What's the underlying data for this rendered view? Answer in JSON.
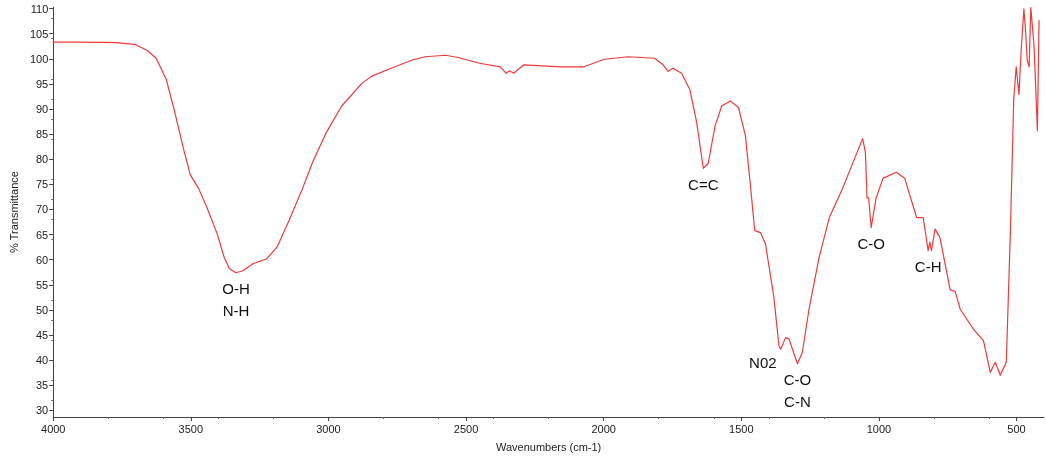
{
  "chart_data": {
    "type": "line",
    "xlabel": "Wavenumbers (cm-1)",
    "ylabel": "% Transmittance",
    "xlim": [
      4000,
      400
    ],
    "ylim": [
      28.7,
      110.3
    ],
    "xticks": [
      4000,
      3500,
      3000,
      2500,
      2000,
      1500,
      1000,
      500
    ],
    "yticks": [
      30,
      35,
      40,
      45,
      50,
      55,
      60,
      65,
      70,
      75,
      80,
      85,
      90,
      95,
      100,
      105,
      110
    ],
    "marker": "none",
    "line_style": "solid",
    "x": [
      4000,
      3911,
      3769,
      3700,
      3657,
      3626,
      3589,
      3558,
      3527,
      3502,
      3472,
      3441,
      3404,
      3379,
      3360,
      3336,
      3311,
      3274,
      3224,
      3187,
      3144,
      3094,
      3057,
      3007,
      2952,
      2877,
      2840,
      2772,
      2698,
      2649,
      2574,
      2525,
      2451,
      2376,
      2354,
      2342,
      2327,
      2290,
      2156,
      2071,
      1998,
      1912,
      1815,
      1784,
      1766,
      1748,
      1717,
      1687,
      1662,
      1638,
      1620,
      1595,
      1571,
      1540,
      1510,
      1485,
      1467,
      1451,
      1430,
      1412,
      1382,
      1363,
      1357,
      1339,
      1327,
      1296,
      1278,
      1254,
      1217,
      1180,
      1132,
      1059,
      1049,
      1043,
      1037,
      1028,
      1010,
      985,
      937,
      906,
      863,
      839,
      821,
      815,
      809,
      796,
      778,
      741,
      723,
      704,
      655,
      620,
      595,
      577,
      559,
      537,
      522,
      510,
      501,
      491,
      483,
      473,
      467,
      461,
      454,
      448,
      436,
      424,
      418
    ],
    "series": [
      {
        "color": "#f03a3a",
        "values": [
          103.3,
          103.3,
          103.2,
          102.8,
          101.6,
          100.1,
          95.8,
          89.3,
          82.1,
          76.9,
          74.2,
          70.3,
          65.1,
          60.5,
          58.2,
          57.4,
          57.8,
          59.2,
          60.2,
          62.5,
          67.7,
          74.2,
          79.5,
          85.4,
          90.6,
          95.2,
          96.6,
          98.1,
          99.7,
          100.4,
          100.7,
          100.2,
          99.1,
          98.4,
          97.1,
          97.6,
          97.1,
          98.8,
          98.4,
          98.4,
          99.9,
          100.4,
          100.1,
          98.8,
          97.5,
          98.1,
          97.1,
          93.9,
          87.3,
          78.2,
          79.2,
          86.7,
          90.6,
          91.6,
          90.3,
          84.7,
          74.9,
          65.8,
          65.4,
          63.1,
          52.7,
          42.9,
          42.2,
          44.5,
          44.3,
          39.3,
          41.6,
          50.1,
          60.5,
          68.4,
          74.2,
          84.1,
          81.4,
          72.3,
          72.3,
          66.4,
          72.3,
          76.2,
          77.4,
          76.2,
          68.4,
          68.4,
          61.8,
          63.5,
          61.8,
          66.1,
          64.4,
          54.0,
          53.7,
          50.1,
          46.1,
          43.9,
          37.6,
          39.6,
          37.0,
          39.6,
          65.8,
          91.9,
          98.4,
          92.9,
          101.7,
          109.9,
          105.6,
          99.7,
          98.4,
          110.2,
          102.4,
          85.7,
          107.6
        ]
      }
    ],
    "annotations": [
      {
        "text": "O-H\nN-H",
        "x": 3336,
        "y": 57.4
      },
      {
        "text": "C=C",
        "x": 1638,
        "y": 78.2
      },
      {
        "text": "N02",
        "x": 1357,
        "y": 42.2
      },
      {
        "text": "C-O\nC-N",
        "x": 1296,
        "y": 39.3
      },
      {
        "text": "C-O",
        "x": 1028,
        "y": 66.4
      },
      {
        "text": "C-H",
        "x": 821,
        "y": 61.8
      }
    ]
  }
}
